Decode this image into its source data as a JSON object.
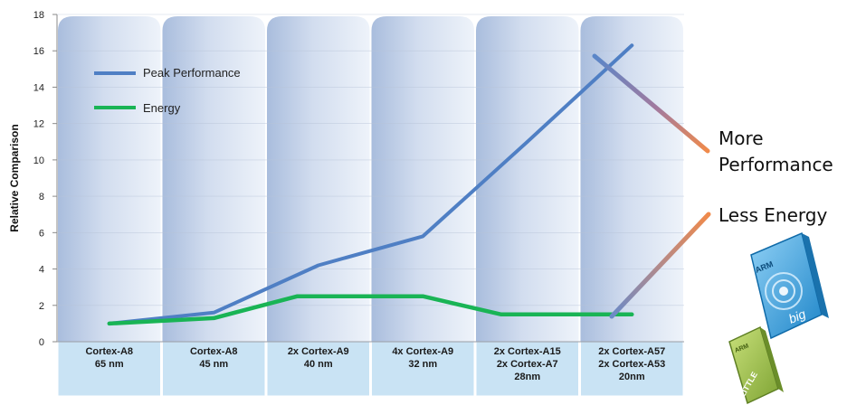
{
  "chart_data": {
    "type": "line",
    "categories": [
      [
        "Cortex-A8",
        "65 nm"
      ],
      [
        "Cortex-A8",
        "45 nm"
      ],
      [
        "2x Cortex-A9",
        "40 nm"
      ],
      [
        "4x Cortex-A9",
        "32 nm"
      ],
      [
        "2x Cortex-A15",
        "2x Cortex-A7",
        "28nm"
      ],
      [
        "2x Cortex-A57",
        "2x Cortex-A53",
        "20nm"
      ]
    ],
    "series": [
      {
        "name": "Peak Performance",
        "color": "#4f7fc4",
        "points": [
          [
            0,
            1.0
          ],
          [
            1,
            1.6
          ],
          [
            2,
            4.2
          ],
          [
            3,
            5.8
          ],
          [
            4,
            11.0
          ],
          [
            5,
            16.3
          ]
        ]
      },
      {
        "name": "Energy",
        "color": "#19b455",
        "points": [
          [
            0,
            1.0
          ],
          [
            1,
            1.3
          ],
          [
            1.8,
            2.5
          ],
          [
            3,
            2.5
          ],
          [
            3.75,
            1.5
          ],
          [
            5,
            1.5
          ]
        ]
      }
    ],
    "ylabel": "Relative Comparison",
    "ylim": [
      0,
      18
    ],
    "yticks": [
      0,
      2,
      4,
      6,
      8,
      10,
      12,
      14,
      16,
      18
    ],
    "legend_position": "top-left",
    "annotations": [
      "More",
      "Performance",
      "Less Energy"
    ],
    "logo": {
      "text_top": "ARM",
      "text_big": "big",
      "text_bottom_brand": "ARM",
      "text_little": "LITTLE"
    }
  }
}
